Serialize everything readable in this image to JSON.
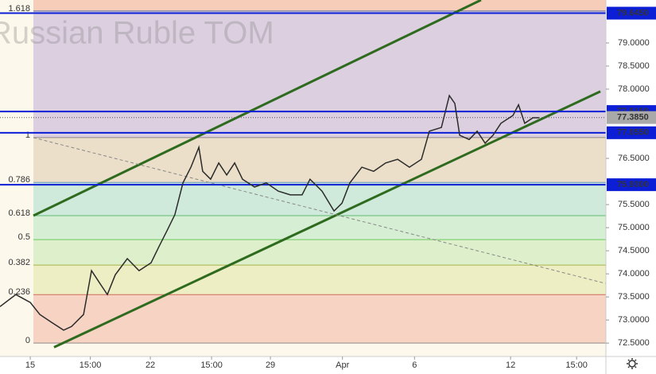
{
  "chart_data": {
    "type": "line",
    "watermark": "Russian Ruble TOM",
    "xlim": [
      -1.26,
      23.97
    ],
    "ylim": [
      72.21,
      79.93
    ],
    "xticks": [
      {
        "value": 0,
        "label": "15"
      },
      {
        "value": 2.5,
        "label": "15:00"
      },
      {
        "value": 5,
        "label": "22"
      },
      {
        "value": 7.55,
        "label": "15:00"
      },
      {
        "value": 10,
        "label": "29"
      },
      {
        "value": 13,
        "label": "Apr"
      },
      {
        "value": 16,
        "label": "6"
      },
      {
        "value": 20,
        "label": "12"
      },
      {
        "value": 22.75,
        "label": "15:00"
      }
    ],
    "yticks": [
      {
        "value": 72.5,
        "label": "72.5000"
      },
      {
        "value": 73,
        "label": "73.0000"
      },
      {
        "value": 73.5,
        "label": "73.5000"
      },
      {
        "value": 74,
        "label": "74.0000"
      },
      {
        "value": 74.5,
        "label": "74.5000"
      },
      {
        "value": 75,
        "label": "75.0000"
      },
      {
        "value": 75.5,
        "label": "75.5000"
      },
      {
        "value": 76.5,
        "label": "76.5000"
      },
      {
        "value": 78,
        "label": "78.0000"
      },
      {
        "value": 78.5,
        "label": "78.5000"
      },
      {
        "value": 79,
        "label": "79.0000"
      }
    ],
    "series": [
      {
        "color": "#2b2b2b",
        "x": [
          -1.26,
          -0.6,
          0,
          0.4,
          0.89,
          1.39,
          1.72,
          2.22,
          2.55,
          2.88,
          3.21,
          3.54,
          4.04,
          4.53,
          5.03,
          5.36,
          5.69,
          6.02,
          6.36,
          6.69,
          7.02,
          7.18,
          7.51,
          7.85,
          8.18,
          8.51,
          8.84,
          9.34,
          9.83,
          10.33,
          10.83,
          11.32,
          11.65,
          12.15,
          12.65,
          12.98,
          13.31,
          13.81,
          14.3,
          14.8,
          15.3,
          15.79,
          16.29,
          16.62,
          17.12,
          17.45,
          17.68,
          17.88,
          18.28,
          18.61,
          18.94,
          19.27,
          19.6,
          20.1,
          20.33,
          20.59,
          20.93,
          21.19
        ],
        "values": [
          73.29,
          73.55,
          73.38,
          73.12,
          72.95,
          72.78,
          72.86,
          73.12,
          74.07,
          73.81,
          73.55,
          73.98,
          74.33,
          74.07,
          74.24,
          74.59,
          74.93,
          75.28,
          75.97,
          76.31,
          76.74,
          76.22,
          76.05,
          76.4,
          76.14,
          76.4,
          76.05,
          75.88,
          75.97,
          75.79,
          75.71,
          75.71,
          76.05,
          75.79,
          75.36,
          75.53,
          75.97,
          76.31,
          76.22,
          76.4,
          76.48,
          76.31,
          76.48,
          77.09,
          77.17,
          77.86,
          77.69,
          77,
          76.91,
          77.09,
          76.83,
          77,
          77.26,
          77.43,
          77.66,
          77.26,
          77.38,
          77.38
        ]
      }
    ],
    "fib_start_x": 0.13,
    "fib_top_color": "#f6cdb9",
    "fib_levels": [
      {
        "label": "1.618",
        "value": 79.69,
        "color": "#dccfe0",
        "label_color": "#1a3d8f"
      },
      {
        "label": "1",
        "value": 76.95,
        "color": "#ebdfc9",
        "label_color": "#666666"
      },
      {
        "label": "0.786",
        "value": 75.98,
        "color": "#cfeadb",
        "label_color": "#2a6fb0"
      },
      {
        "label": "0.618",
        "value": 75.26,
        "color": "#d6eed3",
        "label_color": "#2ea84a"
      },
      {
        "label": "0.5",
        "value": 74.74,
        "color": "#ddf0cb",
        "label_color": "#3cb832"
      },
      {
        "label": "0.382",
        "value": 74.19,
        "color": "#eeeec4",
        "label_color": "#8a9a10"
      },
      {
        "label": "0.236",
        "value": 73.55,
        "color": "#f6d3c3",
        "label_color": "#c0392b"
      },
      {
        "label": "0",
        "value": 72.5,
        "color": null,
        "label_color": "#666666"
      }
    ],
    "trend_lines": [
      {
        "x": [
          0.13,
          18.77
        ],
        "values": [
          75.26,
          79.93
        ],
        "color": "#2e6b1f",
        "dashed": false
      },
      {
        "x": [
          0.99,
          23.74
        ],
        "values": [
          72.41,
          77.95
        ],
        "color": "#2e6b1f",
        "dashed": false
      },
      {
        "x": [
          0.13,
          23.97
        ],
        "values": [
          76.95,
          73.79
        ],
        "color": "#888888",
        "dashed": true
      }
    ],
    "price_levels": [
      {
        "value": 79.645,
        "label": "79.6450"
      },
      {
        "value": 77.515,
        "label": "77.5150"
      },
      {
        "value": 77.055,
        "label": "77.0550"
      },
      {
        "value": 75.93,
        "label": "75.9300"
      }
    ],
    "price_level_color": "#0d1fd6",
    "last_price": {
      "value": 77.385,
      "label": "77.3850",
      "color": "#a9a9a9"
    }
  }
}
